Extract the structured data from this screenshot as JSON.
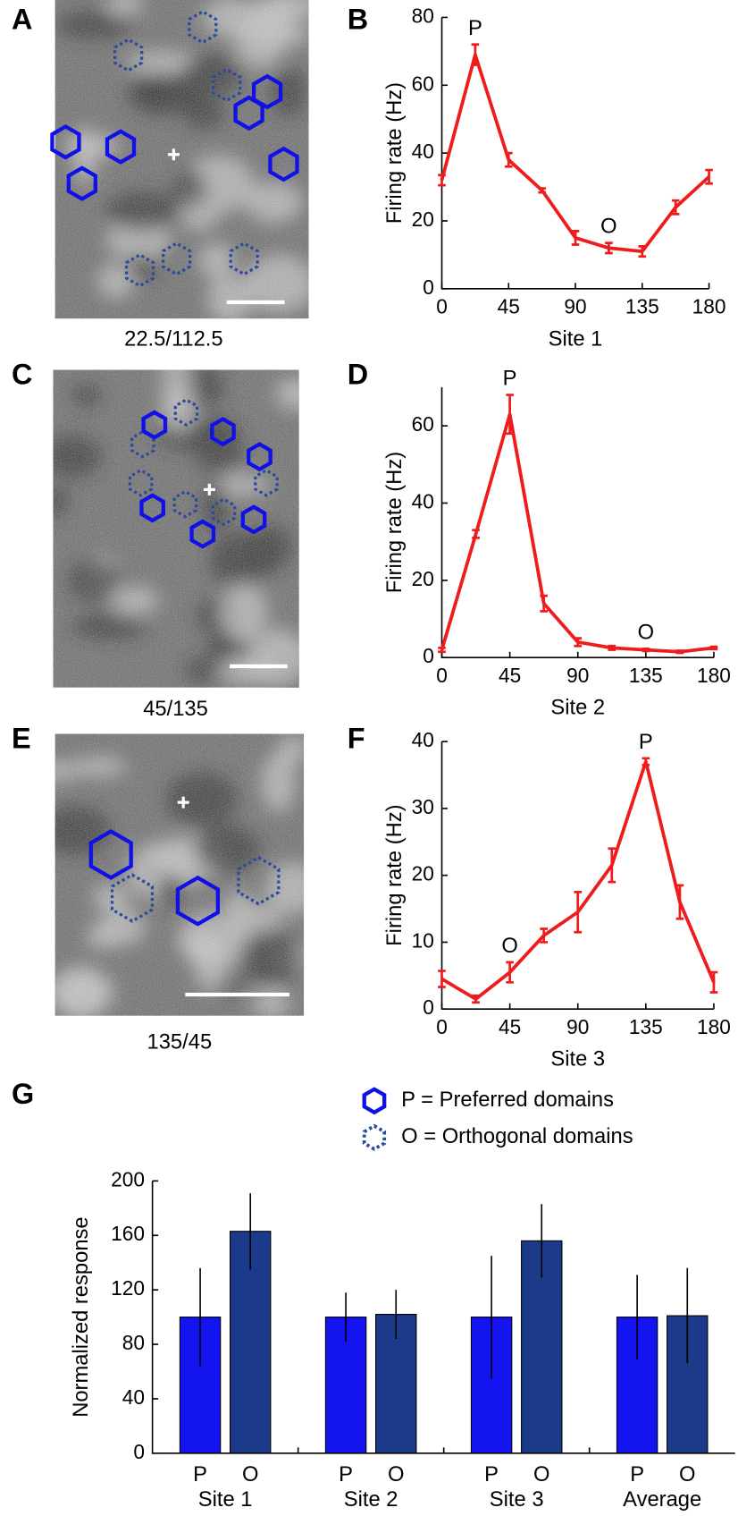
{
  "images": [
    {
      "panel": "A",
      "caption": "22.5/112.5"
    },
    {
      "panel": "C",
      "caption": "45/135"
    },
    {
      "panel": "E",
      "caption": "135/45"
    }
  ],
  "chart_data": [
    {
      "type": "line",
      "panel": "B",
      "xlabel": "Site 1",
      "ylabel": "Firing rate (Hz)",
      "x": [
        0,
        22.5,
        45,
        67.5,
        90,
        112.5,
        135,
        157.5,
        180
      ],
      "series": [
        {
          "color": "#ee1c1c",
          "values": [
            32,
            69,
            38,
            29,
            15,
            12,
            11,
            24,
            33
          ],
          "errors": [
            1.5,
            3,
            2,
            0.6,
            2,
            1.5,
            1.5,
            2,
            2
          ]
        }
      ],
      "annotations": [
        {
          "text": "P",
          "x": 22.5
        },
        {
          "text": "O",
          "x": 112.5
        }
      ],
      "xlim": [
        0,
        180
      ],
      "xticks": [
        0,
        45,
        90,
        135,
        180
      ],
      "ylim": [
        0,
        80
      ],
      "yticks": [
        0,
        20,
        40,
        60,
        80
      ]
    },
    {
      "type": "line",
      "panel": "D",
      "xlabel": "Site 2",
      "ylabel": "Firing rate (Hz)",
      "x": [
        0,
        22.5,
        45,
        67.5,
        90,
        112.5,
        135,
        157.5,
        180
      ],
      "series": [
        {
          "color": "#ee1c1c",
          "values": [
            2,
            32,
            63,
            14,
            4,
            2.5,
            2,
            1.5,
            2.5
          ],
          "errors": [
            0.5,
            1,
            5,
            2,
            1,
            0.5,
            0.3,
            0.3,
            0.3
          ]
        }
      ],
      "annotations": [
        {
          "text": "P",
          "x": 45
        },
        {
          "text": "O",
          "x": 135
        }
      ],
      "xlim": [
        0,
        180
      ],
      "xticks": [
        0,
        45,
        90,
        135,
        180
      ],
      "ylim": [
        0,
        70
      ],
      "yticks": [
        0,
        20,
        40,
        60
      ]
    },
    {
      "type": "line",
      "panel": "F",
      "xlabel": "Site 3",
      "ylabel": "Firing rate (Hz)",
      "x": [
        0,
        22.5,
        45,
        67.5,
        90,
        112.5,
        135,
        157.5,
        180
      ],
      "series": [
        {
          "color": "#ee1c1c",
          "values": [
            4.5,
            1.5,
            5.5,
            11,
            14.5,
            21.5,
            37,
            16,
            4
          ],
          "errors": [
            1.2,
            0.5,
            1.5,
            1,
            3,
            2.5,
            0.5,
            2.5,
            1.5
          ]
        }
      ],
      "annotations": [
        {
          "text": "O",
          "x": 45
        },
        {
          "text": "P",
          "x": 135
        }
      ],
      "xlim": [
        0,
        180
      ],
      "xticks": [
        0,
        45,
        90,
        135,
        180
      ],
      "ylim": [
        0,
        40
      ],
      "yticks": [
        0,
        10,
        20,
        30,
        40
      ]
    },
    {
      "type": "bar",
      "panel": "G",
      "ylabel": "Normalized response",
      "categories": [
        "Site 1",
        "Site 2",
        "Site 3",
        "Average"
      ],
      "series": [
        {
          "name": "P",
          "color": "#1414f0",
          "values": [
            100,
            100,
            100,
            100
          ],
          "errors": [
            36,
            18,
            45,
            31
          ]
        },
        {
          "name": "O",
          "color": "#1c3a8a",
          "values": [
            163,
            102,
            156,
            101
          ],
          "errors": [
            28,
            18,
            27,
            35
          ]
        }
      ],
      "legend": [
        "P = Preferred domains",
        "O = Orthogonal domains"
      ],
      "ylim": [
        0,
        200
      ],
      "yticks": [
        0,
        40,
        80,
        120,
        160,
        200
      ]
    }
  ]
}
